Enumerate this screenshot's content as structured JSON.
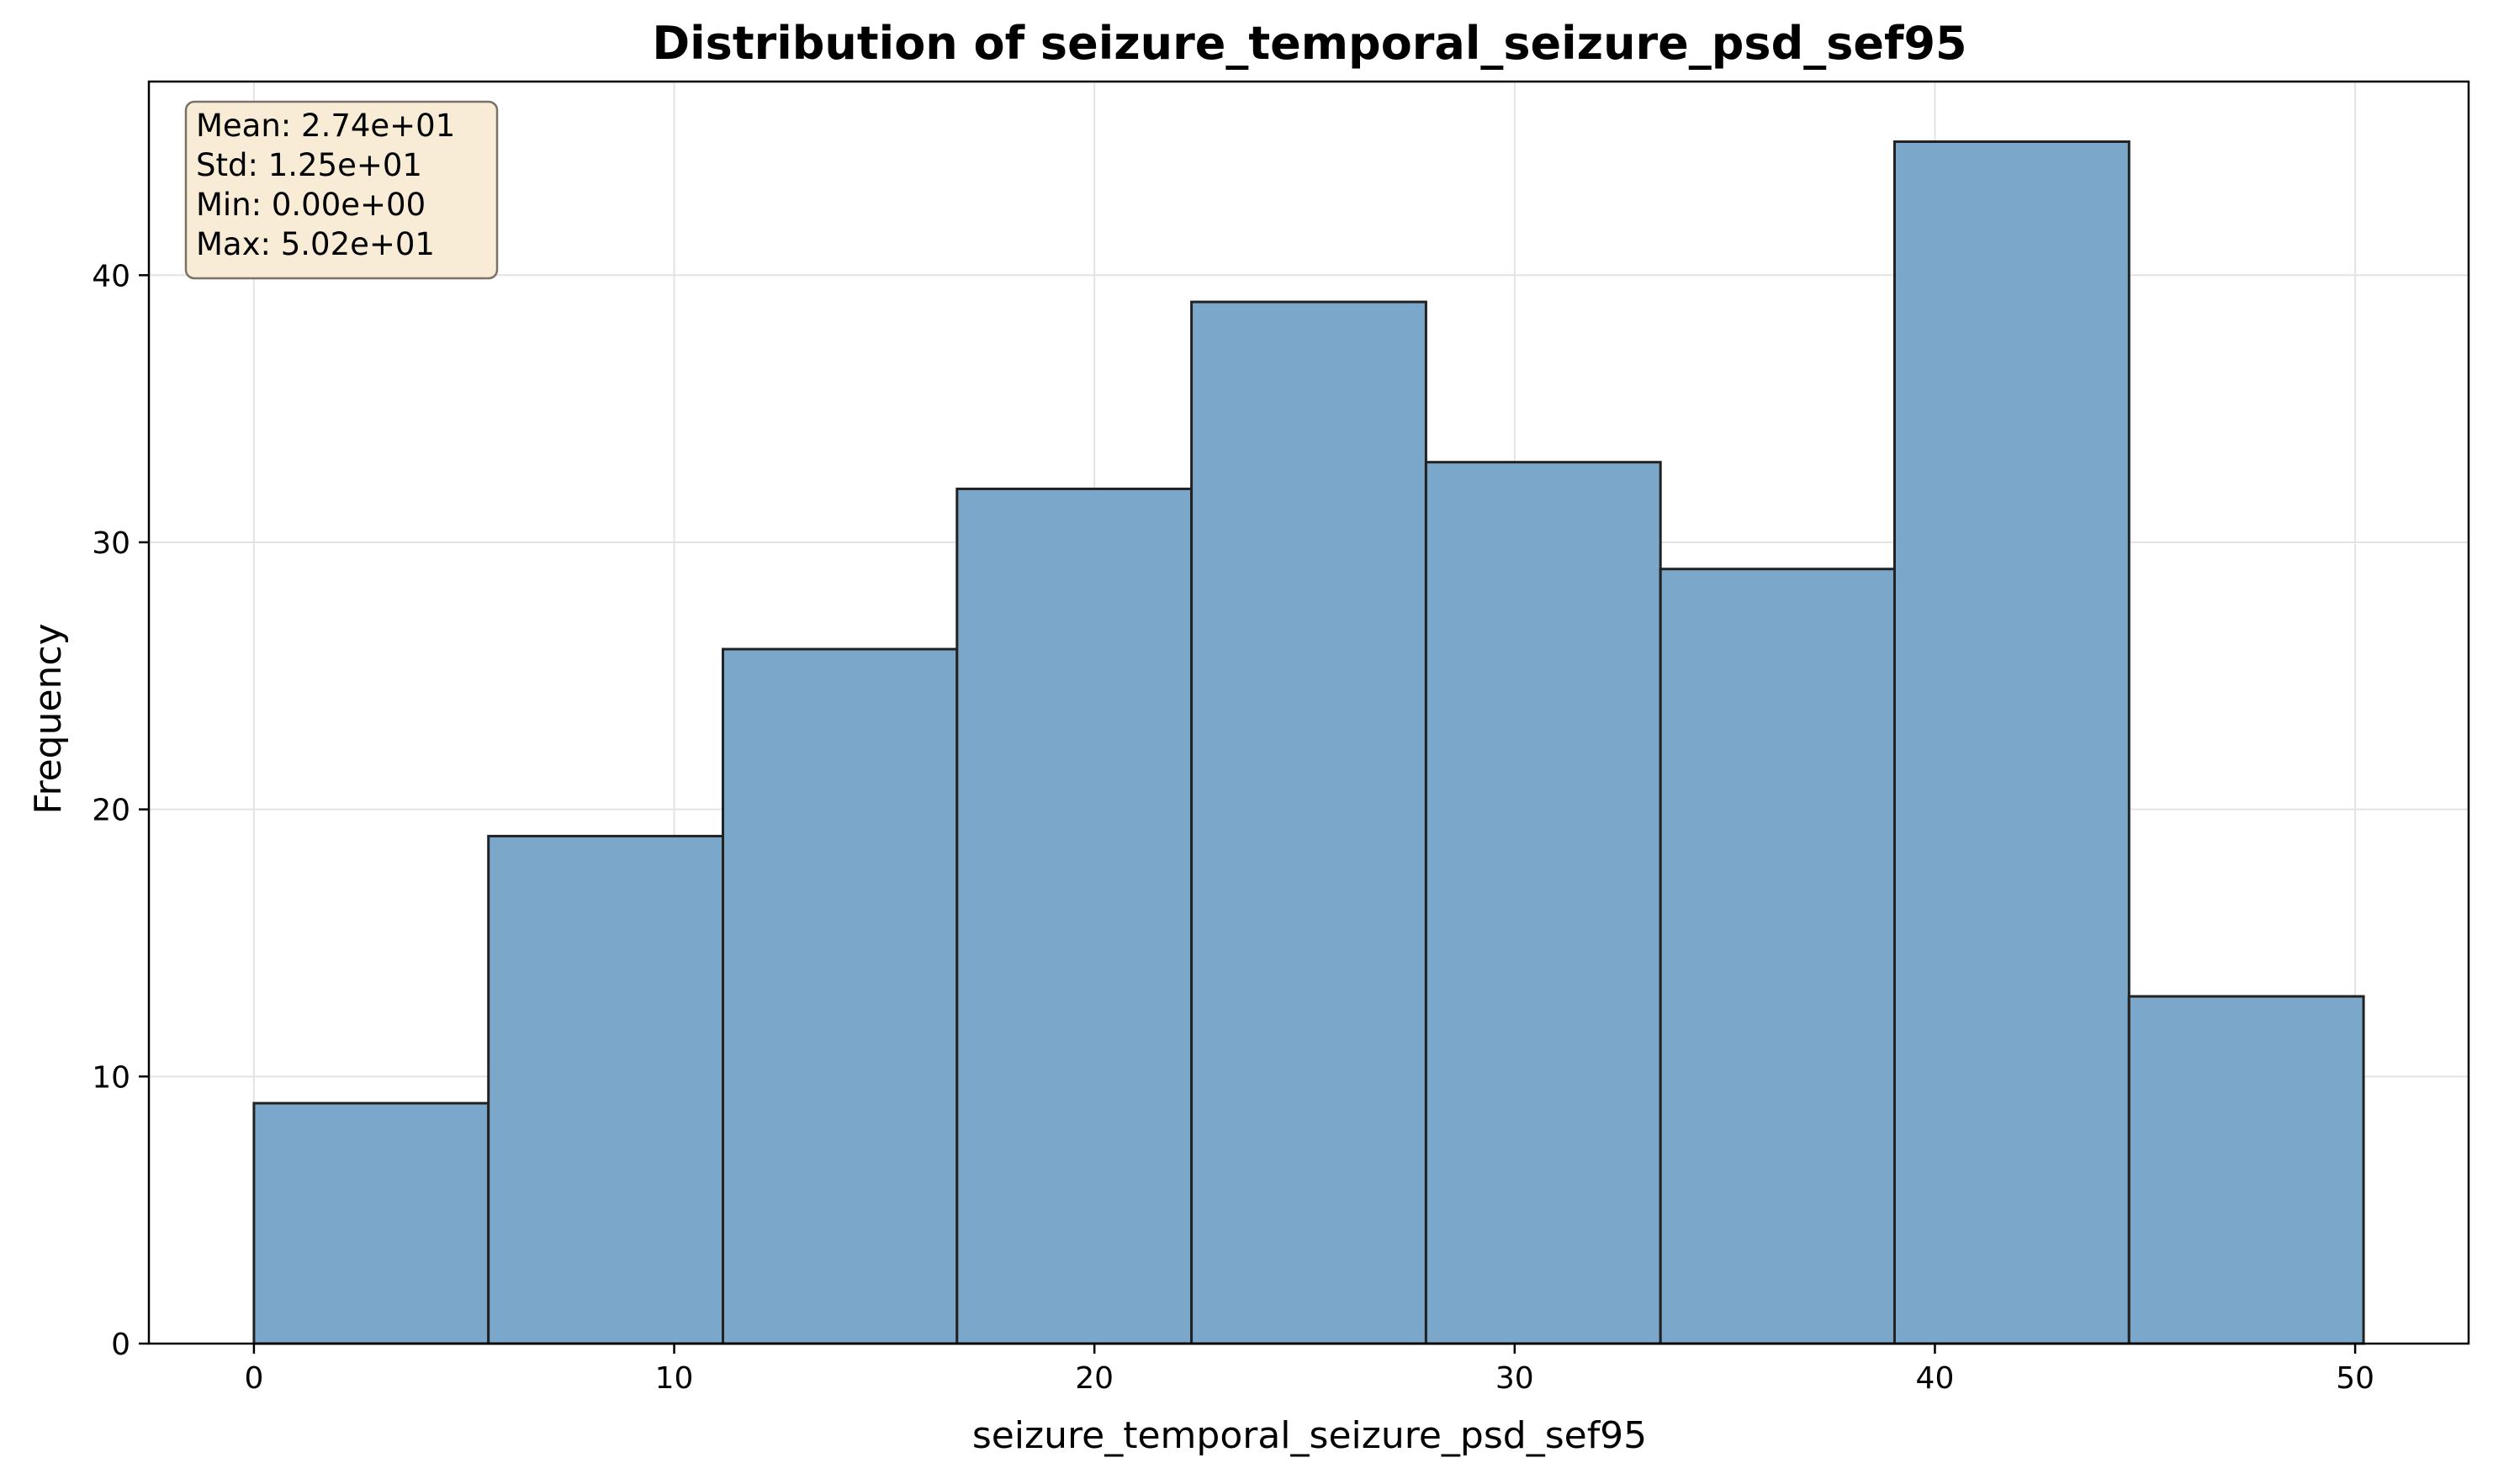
{
  "chart_data": {
    "type": "bar",
    "title": "Distribution of seizure_temporal_seizure_psd_sef95",
    "xlabel": "seizure_temporal_seizure_psd_sef95",
    "ylabel": "Frequency",
    "bin_edges": [
      0.0,
      5.58,
      11.16,
      16.73,
      22.31,
      27.89,
      33.47,
      39.04,
      44.62,
      50.2
    ],
    "values": [
      9,
      19,
      26,
      32,
      39,
      33,
      29,
      45,
      13
    ],
    "xlim": [
      -2.5,
      52.7
    ],
    "ylim": [
      0,
      47.25
    ],
    "x_ticks": [
      0,
      10,
      20,
      30,
      40,
      50
    ],
    "y_ticks": [
      0,
      10,
      20,
      30,
      40
    ],
    "grid": true,
    "stats_box": {
      "position": "top-left",
      "lines": [
        "Mean: 2.74e+01",
        "Std: 1.25e+01",
        "Min: 0.00e+00",
        "Max: 5.02e+01"
      ]
    },
    "colors": {
      "bar_fill": "#7ba7cb",
      "bar_edge": "#222222",
      "grid": "#e3e3e3",
      "stats_box_fill": "#f8ecd6",
      "stats_box_edge": "#7a7266"
    }
  }
}
